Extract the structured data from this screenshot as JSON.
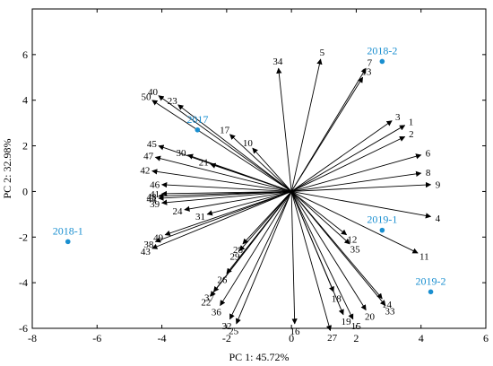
{
  "chart_data": {
    "type": "scatter",
    "subtype": "pca-biplot",
    "xlabel": "PC 1: 45.72%",
    "ylabel": "PC 2: 32.98%",
    "xlim": [
      -8,
      6
    ],
    "ylim": [
      -6,
      8
    ],
    "x_ticks": [
      -8,
      -6,
      -4,
      -2,
      0,
      2,
      4,
      6
    ],
    "y_ticks": [
      -6,
      -4,
      -2,
      0,
      2,
      4,
      6
    ],
    "grid": false,
    "observation_color": "#1a8fd0",
    "arrow_color": "#000000",
    "observations": [
      {
        "label": "2018-2",
        "x": 2.8,
        "y": 5.7
      },
      {
        "label": "2017",
        "x": -2.9,
        "y": 2.7
      },
      {
        "label": "2018-1",
        "x": -6.9,
        "y": -2.2
      },
      {
        "label": "2019-1",
        "x": 2.8,
        "y": -1.7
      },
      {
        "label": "2019-2",
        "x": 4.3,
        "y": -4.4
      }
    ],
    "variables": [
      {
        "label": "1",
        "x": 3.5,
        "y": 2.9
      },
      {
        "label": "2",
        "x": 3.5,
        "y": 2.4
      },
      {
        "label": "3",
        "x": 3.1,
        "y": 3.1
      },
      {
        "label": "4",
        "x": 4.3,
        "y": -1.1
      },
      {
        "label": "5",
        "x": 0.9,
        "y": 5.8
      },
      {
        "label": "6",
        "x": 4.0,
        "y": 1.6
      },
      {
        "label": "7",
        "x": 2.3,
        "y": 5.4
      },
      {
        "label": "8",
        "x": 4.0,
        "y": 0.8
      },
      {
        "label": "9",
        "x": 4.3,
        "y": 0.3
      },
      {
        "label": "10",
        "x": -1.2,
        "y": 1.9
      },
      {
        "label": "11",
        "x": 3.9,
        "y": -2.7
      },
      {
        "label": "12",
        "x": 1.7,
        "y": -1.9
      },
      {
        "label": "13",
        "x": 2.2,
        "y": 5.0
      },
      {
        "label": "14",
        "x": 2.8,
        "y": -4.7
      },
      {
        "label": "15",
        "x": 1.9,
        "y": -5.6
      },
      {
        "label": "16",
        "x": 0.1,
        "y": -5.8
      },
      {
        "label": "17",
        "x": -1.9,
        "y": 2.5
      },
      {
        "label": "18",
        "x": 1.3,
        "y": -4.4
      },
      {
        "label": "19",
        "x": 1.6,
        "y": -5.4
      },
      {
        "label": "20",
        "x": 2.3,
        "y": -5.2
      },
      {
        "label": "21",
        "x": -2.5,
        "y": 1.2
      },
      {
        "label": "22",
        "x": -2.5,
        "y": -4.6
      },
      {
        "label": "23",
        "x": -3.5,
        "y": 3.8
      },
      {
        "label": "24",
        "x": -3.3,
        "y": -0.8
      },
      {
        "label": "25",
        "x": -1.7,
        "y": -5.8
      },
      {
        "label": "26",
        "x": -2.0,
        "y": -3.6
      },
      {
        "label": "27",
        "x": 1.2,
        "y": -6.1
      },
      {
        "label": "28",
        "x": -1.5,
        "y": -2.3
      },
      {
        "label": "29",
        "x": -1.6,
        "y": -2.6
      },
      {
        "label": "30",
        "x": -3.2,
        "y": 1.6
      },
      {
        "label": "31",
        "x": -2.6,
        "y": -1.0
      },
      {
        "label": "32",
        "x": -1.9,
        "y": -5.6
      },
      {
        "label": "33",
        "x": 2.9,
        "y": -5.0
      },
      {
        "label": "34",
        "x": -0.4,
        "y": 5.4
      },
      {
        "label": "35",
        "x": 1.8,
        "y": -2.3
      },
      {
        "label": "36",
        "x": -2.2,
        "y": -5.0
      },
      {
        "label": "37",
        "x": -2.4,
        "y": -4.4
      },
      {
        "label": "38",
        "x": -4.2,
        "y": -2.2
      },
      {
        "label": "39",
        "x": -4.0,
        "y": -0.5
      },
      {
        "label": "40",
        "x": -4.1,
        "y": 4.2
      },
      {
        "label": "41",
        "x": -4.0,
        "y": -0.1
      },
      {
        "label": "42",
        "x": -4.3,
        "y": 0.9
      },
      {
        "label": "43",
        "x": -4.3,
        "y": -2.5
      },
      {
        "label": "44",
        "x": -4.1,
        "y": -0.3
      },
      {
        "label": "45",
        "x": -4.1,
        "y": 2.0
      },
      {
        "label": "46",
        "x": -4.0,
        "y": 0.3
      },
      {
        "label": "47",
        "x": -4.2,
        "y": 1.5
      },
      {
        "label": "48",
        "x": -4.1,
        "y": -0.2
      },
      {
        "label": "49",
        "x": -3.9,
        "y": -1.9
      },
      {
        "label": "50",
        "x": -4.3,
        "y": 4.0
      }
    ]
  }
}
